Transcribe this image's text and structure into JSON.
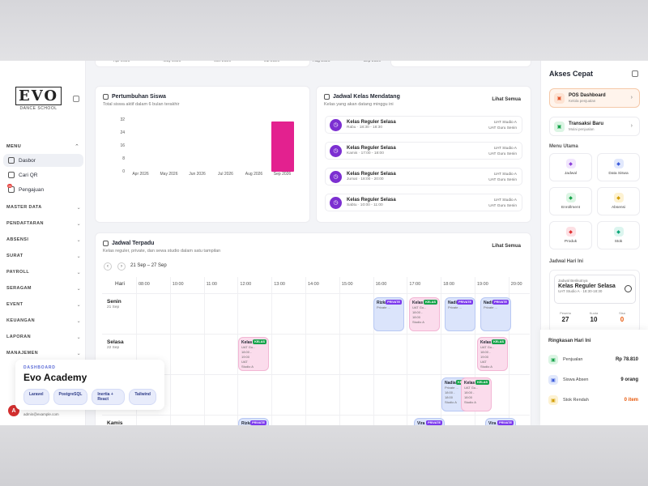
{
  "top_months": [
    "Apr 2026",
    "May 2026",
    "Jun 2026",
    "Jul 2026",
    "Aug 2026",
    "Sep 2026"
  ],
  "sidebar": {
    "logo_main": "EVO",
    "logo_sub": "DANCE SCHOOL",
    "menu_label": "MENU",
    "links": [
      {
        "label": "Dasbor",
        "icon": "home-icon"
      },
      {
        "label": "Cari QR",
        "icon": "qr-icon"
      },
      {
        "label": "Pengajuan",
        "icon": "inbox-icon",
        "badge": "34"
      }
    ],
    "groups": [
      "MASTER DATA",
      "PENDAFTARAN",
      "ABSENSI",
      "SURAT",
      "PAYROLL",
      "SERAGAM",
      "EVENT",
      "KEUANGAN",
      "LAPORAN",
      "MANAJEMEN"
    ],
    "user_initial": "A",
    "user_email": "admin@example.com"
  },
  "dash_card": {
    "kicker": "DASHBOARD",
    "title": "Evo Academy",
    "chips": [
      "Laravel",
      "PostgreSQL",
      "Inertia + React",
      "Tailwind"
    ]
  },
  "growth": {
    "title": "Pertumbuhan Siswa",
    "subtitle": "Total siswa aktif dalam 6 bulan terakhir"
  },
  "chart_data": {
    "type": "bar",
    "categories": [
      "Apr 2026",
      "May 2026",
      "Jun 2026",
      "Jul 2026",
      "Aug 2026",
      "Sep 2026"
    ],
    "values": [
      0,
      0,
      0,
      0,
      0,
      31
    ],
    "yticks": [
      "32",
      "24",
      "16",
      "8",
      "0"
    ],
    "ylim": [
      0,
      32
    ],
    "color": "#e3218f"
  },
  "upcoming": {
    "title": "Jadwal Kelas Mendatang",
    "subtitle": "Kelas yang akan datang minggu ini",
    "link": "Lihat Semua",
    "items": [
      {
        "name": "Kelas Reguler Selasa",
        "time": "Rabu · 18:30 - 18:30",
        "room": "UAT Studio A",
        "teacher": "UAT Guru Senin"
      },
      {
        "name": "Kelas Reguler Selasa",
        "time": "Kamis · 17:00 - 18:00",
        "room": "UAT Studio A",
        "teacher": "UAT Guru Senin"
      },
      {
        "name": "Kelas Reguler Selasa",
        "time": "Jumat · 18:00 - 20:00",
        "room": "UAT Studio A",
        "teacher": "UAT Guru Senin"
      },
      {
        "name": "Kelas Reguler Selasa",
        "time": "Sabtu · 10:00 - 11:00",
        "room": "UAT Studio A",
        "teacher": "UAT Guru Senin"
      }
    ]
  },
  "schedule": {
    "title": "Jadwal Terpadu",
    "subtitle": "Kelas reguler, private, dan sewa studio dalam satu tampilan",
    "link": "Lihat Semua",
    "range": "21 Sep – 27 Sep",
    "hari_label": "Hari",
    "hours": [
      "08:00",
      "10:00",
      "11:00",
      "12:00",
      "13:00",
      "14:00",
      "15:00",
      "16:00",
      "17:00",
      "18:00",
      "19:00",
      "20:00"
    ],
    "days": [
      {
        "name": "Senin",
        "date": "21 Sep"
      },
      {
        "name": "Selasa",
        "date": "22 Sep"
      },
      {
        "name": "",
        "date": ""
      },
      {
        "name": "Kamis",
        "date": ""
      }
    ],
    "events": [
      {
        "name": "Rizka",
        "tag": "PRIVATE",
        "lines": [
          "Private ..."
        ],
        "color": "blue"
      },
      {
        "name": "Kelas",
        "tag": "KELAS",
        "lines": [
          "UAT Gu...",
          "18:00 -",
          "18:00",
          "Studio A"
        ],
        "color": "pink"
      },
      {
        "name": "Nadia",
        "tag": "PRIVATE",
        "lines": [
          "Private ..."
        ],
        "color": "blue"
      },
      {
        "name": "Nadi",
        "tag": "PRIVATE",
        "lines": [
          "Private ..."
        ],
        "color": "blue"
      },
      {
        "name": "Kelas",
        "tag": "KELAS",
        "lines": [
          "UAT Gu...",
          "18:00 -",
          "19:00",
          "UAT",
          "Studio A"
        ],
        "color": "pink"
      },
      {
        "name": "Kelas",
        "tag": "KELAS",
        "lines": [
          "UAT Gu...",
          "18:00 -",
          "19:00",
          "UAT",
          "Studio A"
        ],
        "color": "pink"
      },
      {
        "name": "Nadia",
        "tag": "KELAS",
        "lines": [
          "Private ...",
          "18:00 -",
          "18:00",
          "Studio A"
        ],
        "color": "blue"
      },
      {
        "name": "Kelas",
        "tag": "KELAS",
        "lines": [
          "UAT Gu...",
          "18:00 -",
          "18:00",
          "Studio A"
        ],
        "color": "pink"
      },
      {
        "name": "Rizka",
        "tag": "PRIVATE",
        "lines": [],
        "color": "blue"
      },
      {
        "name": "Vira",
        "tag": "PRIVATE",
        "lines": [],
        "color": "blue"
      },
      {
        "name": "Vira",
        "tag": "PRIVATE",
        "lines": [],
        "color": "blue"
      }
    ]
  },
  "right": {
    "title": "Akses Cepat",
    "quick": [
      {
        "name": "POS Dashboard",
        "sub": "Kelola penjualan",
        "icon": "cart-icon",
        "color": "#fde3d3",
        "fg": "#e4572e"
      },
      {
        "name": "Transaksi Baru",
        "sub": "Mulai penjualan",
        "icon": "cart-icon",
        "color": "#dcf5e4",
        "fg": "#16a34a"
      }
    ],
    "menu_label": "Menu Utama",
    "tiles": [
      {
        "label": "Jadwal",
        "icon": "calendar-icon",
        "color": "#f1e6fd",
        "fg": "#8b3fd9"
      },
      {
        "label": "Data Siswa",
        "icon": "users-icon",
        "color": "#e1e8fc",
        "fg": "#3b5bdb"
      },
      {
        "label": "Enrollment",
        "icon": "user-plus-icon",
        "color": "#dcf5e4",
        "fg": "#16a34a"
      },
      {
        "label": "Absensi",
        "icon": "clipboard-icon",
        "color": "#fdf2d2",
        "fg": "#d39e00"
      },
      {
        "label": "Produk",
        "icon": "box-icon",
        "color": "#fde0e4",
        "fg": "#e03131"
      },
      {
        "label": "Stok",
        "icon": "trend-icon",
        "color": "#dcf5ef",
        "fg": "#0ca678"
      }
    ],
    "today_label": "Jadwal Hari Ini",
    "today_kicker": "Jadwal Berikutnya",
    "today_name": "Kelas Reguler Selasa",
    "today_sub": "UAT Studio A · 18:30-18:30",
    "stats": [
      {
        "label": "Peserta",
        "value": "27",
        "color": "#222"
      },
      {
        "label": "Kuota",
        "value": "10",
        "color": "#222"
      },
      {
        "label": "Sisa",
        "value": "0",
        "color": "#e8590c"
      }
    ],
    "summary_title": "Ringkasan Hari Ini",
    "summary": [
      {
        "label": "Penjualan",
        "value": "Rp 78.810",
        "icon": "cart-icon",
        "color": "#dcf5e4",
        "fg": "#16a34a",
        "vcolor": "#222"
      },
      {
        "label": "Siswa Absen",
        "value": "9 orang",
        "icon": "users-icon",
        "color": "#e1e8fc",
        "fg": "#3b5bdb",
        "vcolor": "#222"
      },
      {
        "label": "Stok Rendah",
        "value": "0 item",
        "icon": "box-icon",
        "color": "#fdf2d2",
        "fg": "#d39e00",
        "vcolor": "#e8590c"
      }
    ]
  }
}
